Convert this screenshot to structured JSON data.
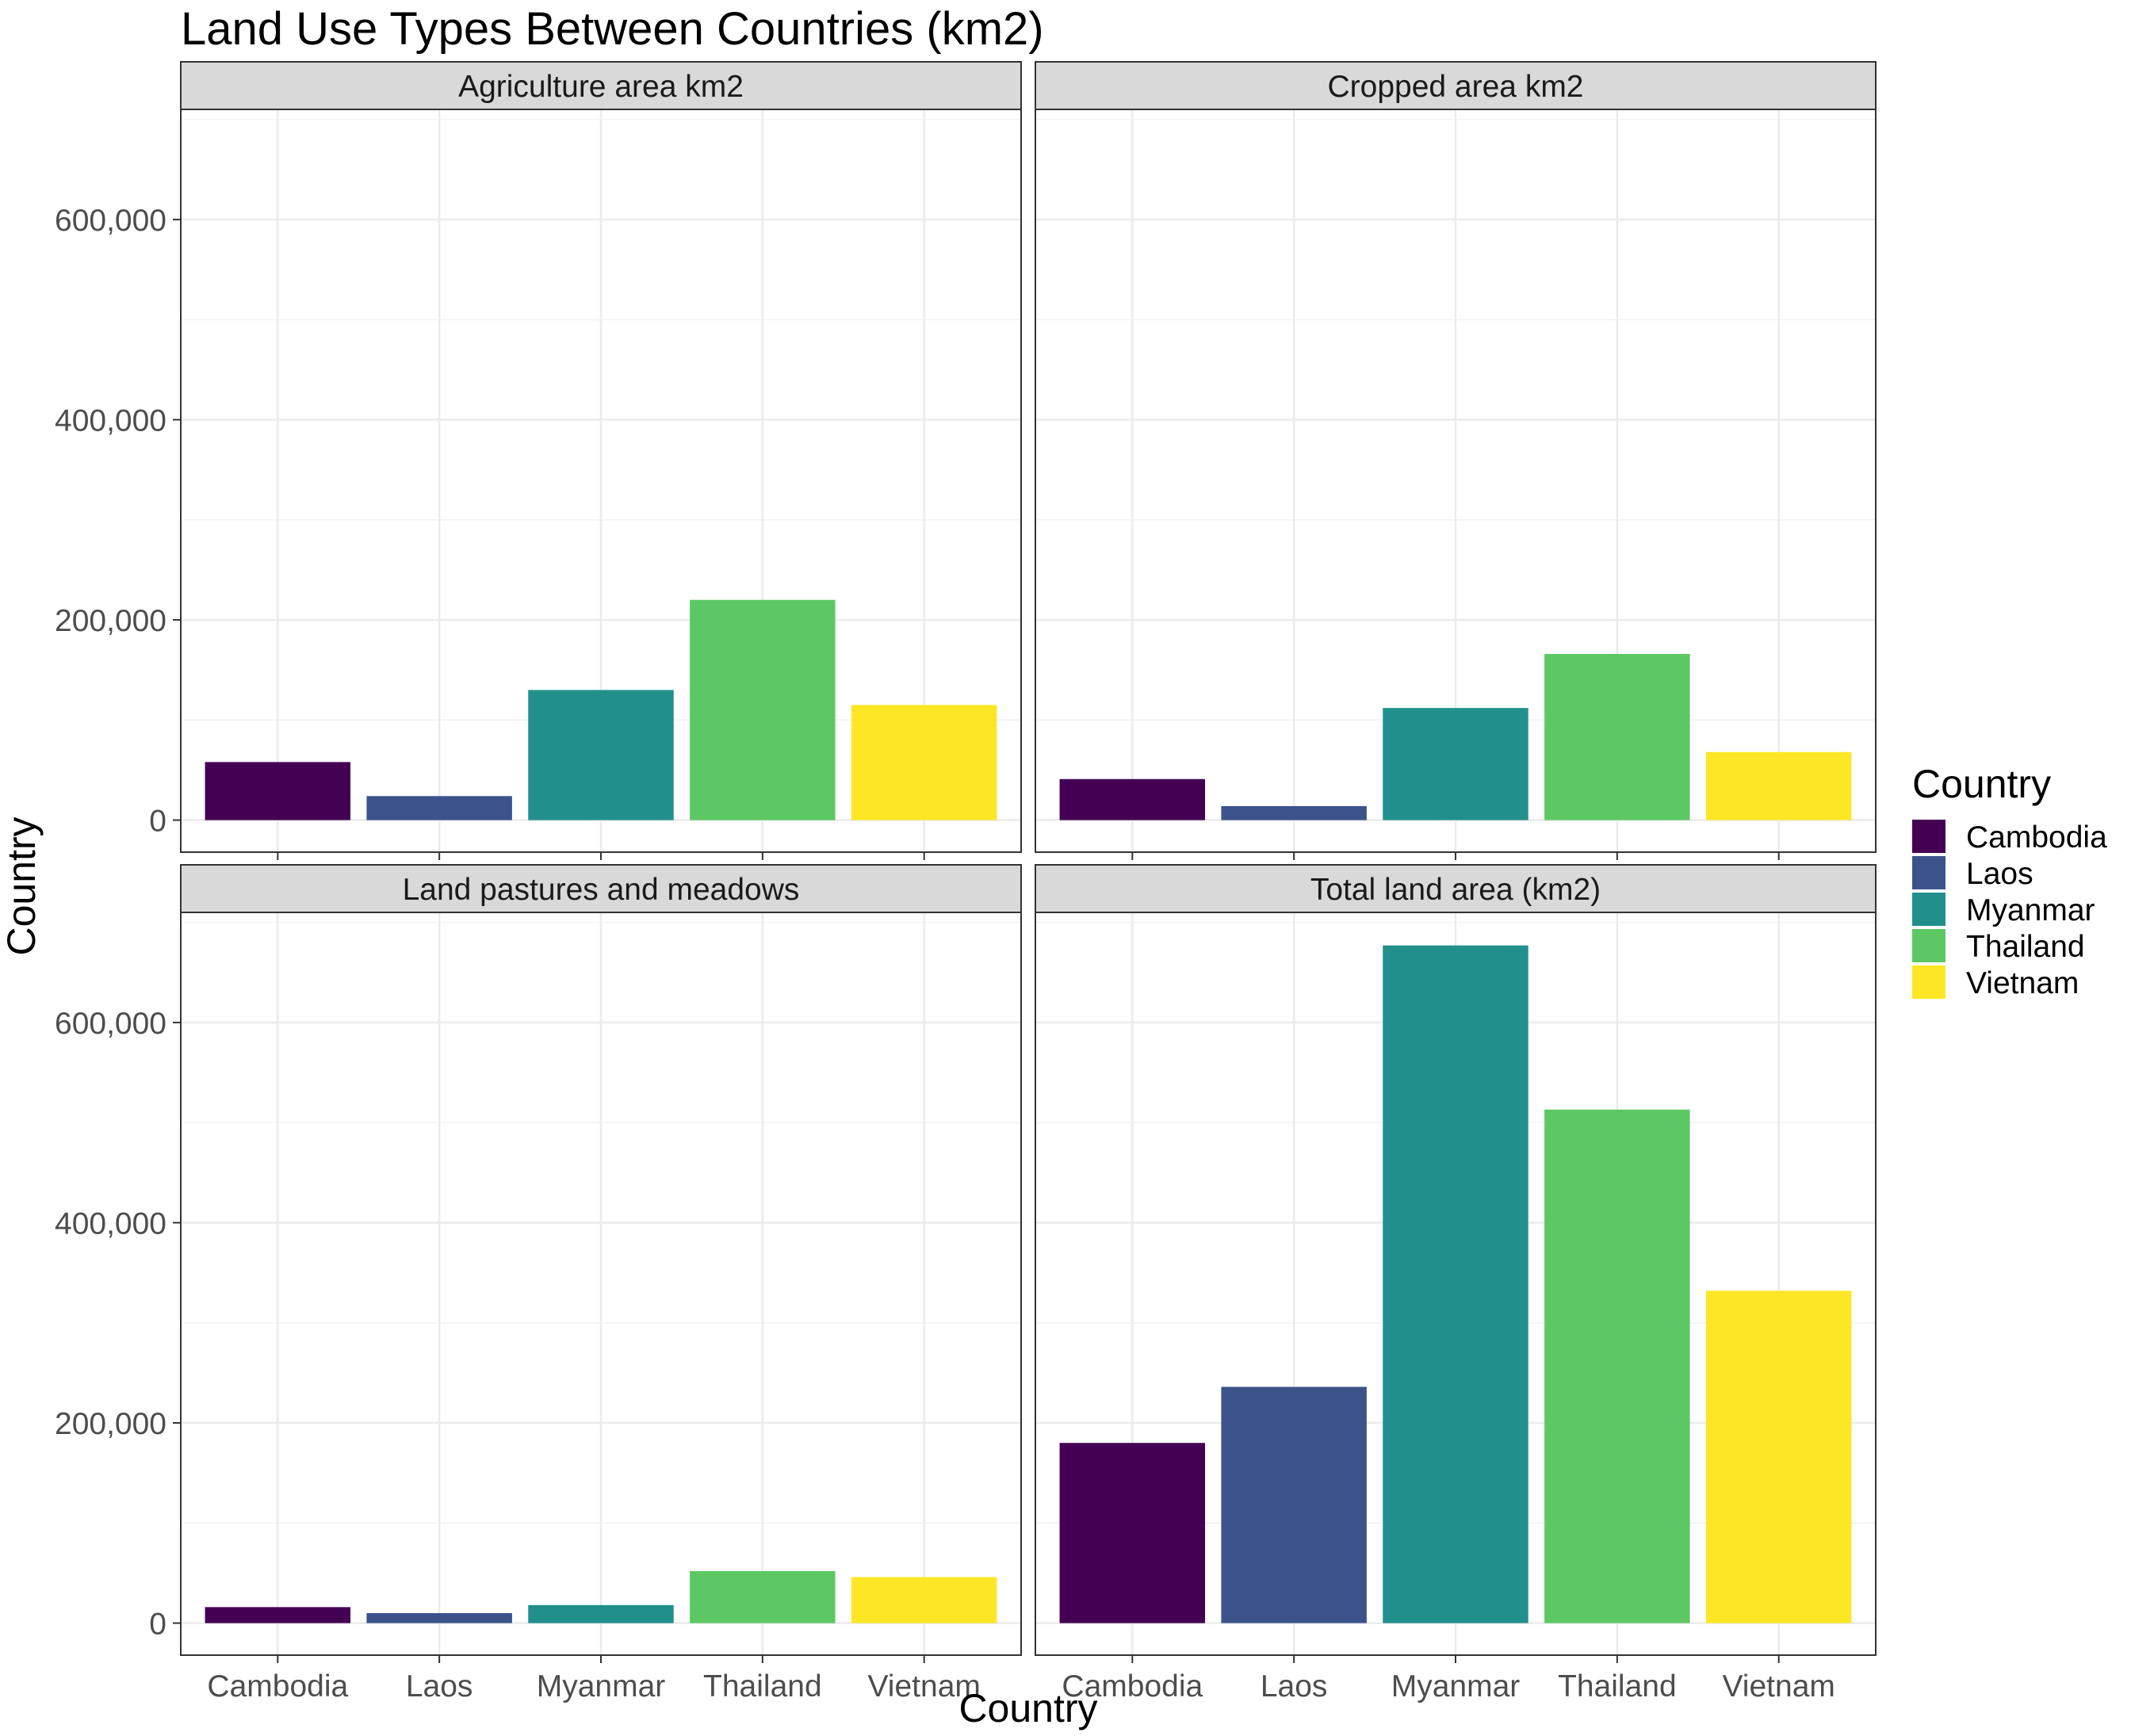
{
  "chart_data": {
    "type": "bar",
    "title": "Land Use Types Between Countries (km2)",
    "xlabel": "Country",
    "ylabel": "Country",
    "ylim": [
      -32000,
      710000
    ],
    "y_ticks": [
      0,
      200000,
      400000,
      600000
    ],
    "y_tick_labels": [
      "0",
      "200,000",
      "400,000",
      "600,000"
    ],
    "categories": [
      "Cambodia",
      "Laos",
      "Myanmar",
      "Thailand",
      "Vietnam"
    ],
    "legend": {
      "title": "Country",
      "position": "right",
      "entries": [
        "Cambodia",
        "Laos",
        "Myanmar",
        "Thailand",
        "Vietnam"
      ]
    },
    "colors": {
      "Cambodia": "#440154",
      "Laos": "#3b528b",
      "Myanmar": "#21908c",
      "Thailand": "#5dc863",
      "Vietnam": "#fde725"
    },
    "grid": true,
    "facets": [
      {
        "name": "Agriculture area km2",
        "values": [
          58000,
          24000,
          130000,
          220000,
          115000
        ]
      },
      {
        "name": "Cropped area km2",
        "values": [
          41000,
          14000,
          112000,
          166000,
          68000
        ]
      },
      {
        "name": "Land pastures and meadows",
        "values": [
          16000,
          10000,
          18000,
          52000,
          46000
        ]
      },
      {
        "name": "Total land area (km2)",
        "values": [
          180000,
          236000,
          677000,
          513000,
          332000
        ]
      }
    ]
  }
}
